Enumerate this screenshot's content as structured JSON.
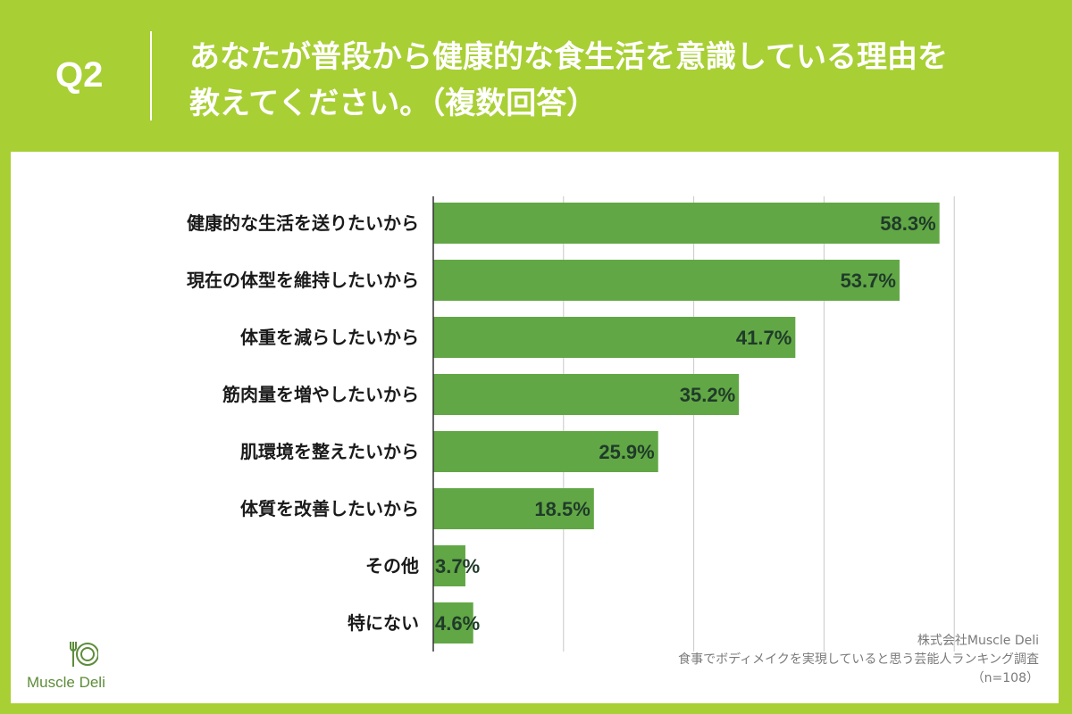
{
  "header": {
    "question_number": "Q2",
    "title_line1": "あなたが普段から健康的な食生活を意識している理由を",
    "title_line2": "教えてください。（複数回答）"
  },
  "colors": {
    "background": "#a8cf34",
    "bar": "#62a745",
    "value_text": "#1f3b2a",
    "grid": "#c8c8c8"
  },
  "chart_data": {
    "type": "bar",
    "orientation": "horizontal",
    "categories": [
      "健康的な生活を送りたいから",
      "現在の体型を維持したいから",
      "体重を減らしたいから",
      "筋肉量を増やしたいから",
      "肌環境を整えたいから",
      "体質を改善したいから",
      "その他",
      "特にない"
    ],
    "values": [
      58.3,
      53.7,
      41.7,
      35.2,
      25.9,
      18.5,
      3.7,
      4.6
    ],
    "value_labels": [
      "58.3%",
      "53.7%",
      "41.7%",
      "35.2%",
      "25.9%",
      "18.5%",
      "3.7%",
      "4.6%"
    ],
    "xlim": [
      0,
      60
    ],
    "grid": true
  },
  "logo": {
    "icon": "fork-plate-knife-icon",
    "text": "Muscle Deli"
  },
  "source": {
    "company": "株式会社Muscle Deli",
    "survey": "食事でボディメイクを実現していると思う芸能人ランキング調査",
    "sample": "（n=108）"
  }
}
